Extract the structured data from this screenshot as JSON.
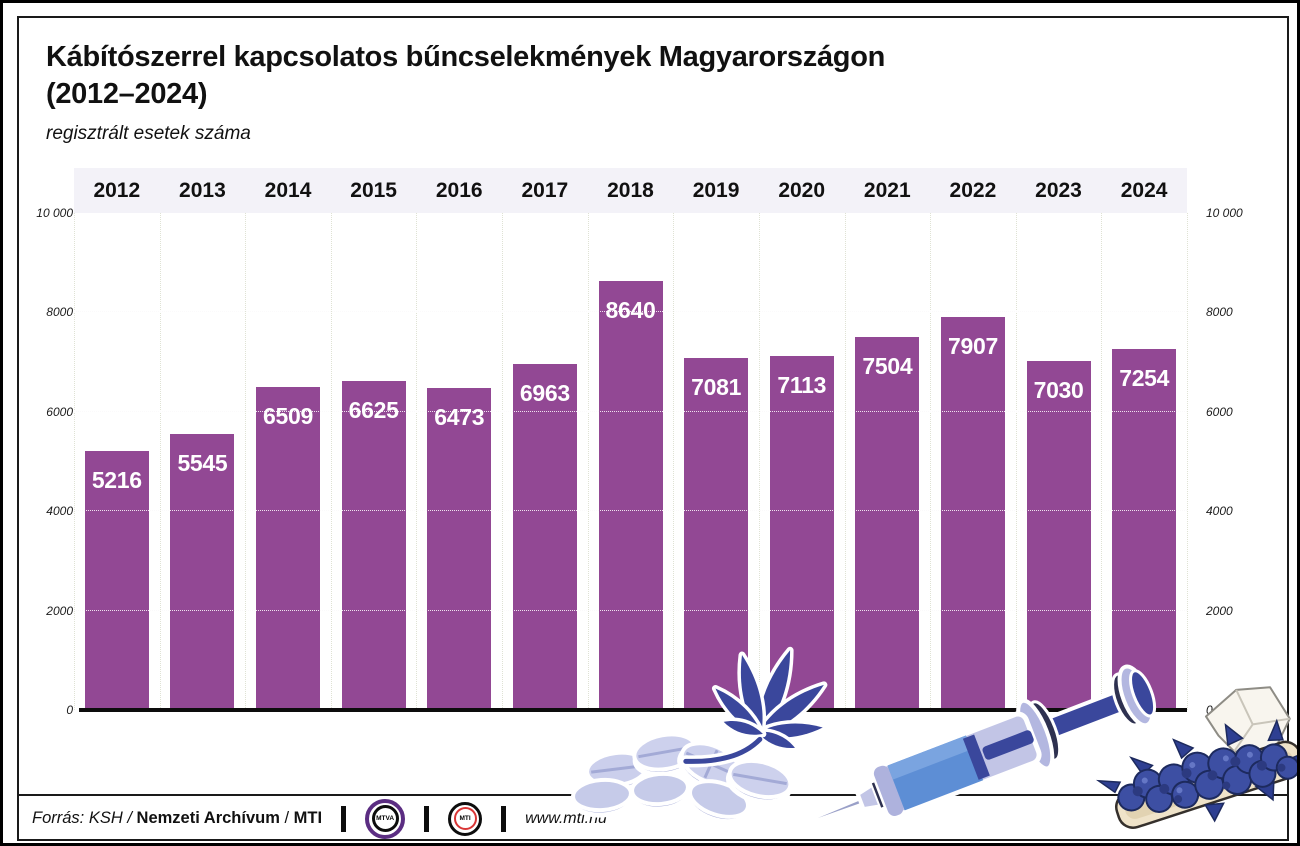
{
  "title": "Kábítószerrel kapcsolatos bűncselekmények Magyarországon",
  "title_line2": "(2012–2024)",
  "subtitle": "regisztrált esetek száma",
  "chart_data": {
    "type": "bar",
    "categories": [
      "2012",
      "2013",
      "2014",
      "2015",
      "2016",
      "2017",
      "2018",
      "2019",
      "2020",
      "2021",
      "2022",
      "2023",
      "2024"
    ],
    "values": [
      5216,
      5545,
      6509,
      6625,
      6473,
      6963,
      8640,
      7081,
      7113,
      7504,
      7907,
      7030,
      7254
    ],
    "title": "Kábítószerrel kapcsolatos bűncselekmények Magyarországon (2012–2024)",
    "subtitle": "regisztrált esetek száma",
    "xlabel": "",
    "ylabel": "",
    "ylim": [
      0,
      10000
    ],
    "tick_values": [
      0,
      2000,
      4000,
      6000,
      8000,
      10000
    ],
    "tick_labels": [
      "0",
      "2000",
      "4000",
      "6000",
      "8000",
      "10 000"
    ],
    "grid": "dotted horizontal and vertical",
    "legend": "none",
    "value_labels": "white bold inside top of each bar",
    "bar_color": "#924894"
  },
  "footer": {
    "source_prefix": "Forrás: KSH /",
    "source_bold1": "Nemzeti Archívum",
    "source_sep": "/",
    "source_bold2": "MTI",
    "mtva_logo_text": "MTVA",
    "mti_logo_text": "MTI",
    "website": "www.mti.hu"
  },
  "decorations": [
    "cannabis-leaf",
    "pills",
    "syringe",
    "cannabis-blunt"
  ],
  "colors": {
    "bar": "#924894",
    "band": "#f3f2f8",
    "mtva": "#5b2d82",
    "mtired": "#d93636",
    "navy": "#3a479c",
    "lavender": "#c6cae9"
  }
}
